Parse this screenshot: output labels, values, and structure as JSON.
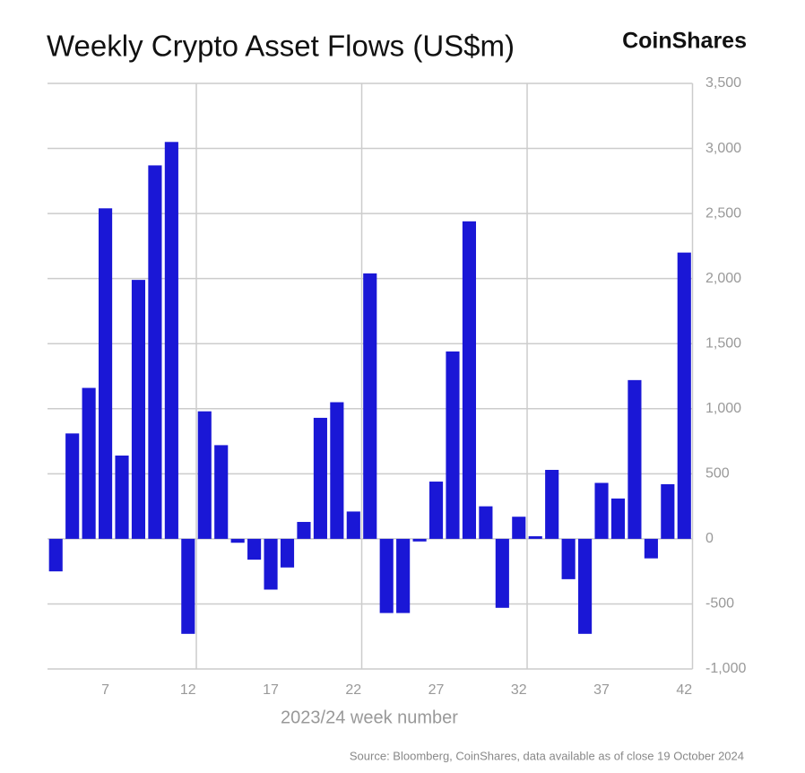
{
  "chart_data": {
    "type": "bar",
    "title": "Weekly Crypto Asset Flows (US$m)",
    "brand": "CoinShares",
    "xlabel": "2023/24 week number",
    "source": "Source: Bloomberg, CoinShares, data available as of close 19 October 2024",
    "categories": [
      null,
      null,
      null,
      "7",
      null,
      null,
      null,
      null,
      "12",
      null,
      null,
      null,
      null,
      "17",
      null,
      null,
      null,
      null,
      "22",
      null,
      null,
      null,
      null,
      "27",
      null,
      null,
      null,
      null,
      "32",
      null,
      null,
      null,
      null,
      "37",
      null,
      null,
      null,
      null,
      "42"
    ],
    "values": [
      -250,
      810,
      1160,
      2540,
      640,
      1990,
      2870,
      3050,
      -730,
      980,
      720,
      -30,
      -160,
      -390,
      -220,
      130,
      930,
      1050,
      210,
      2040,
      -570,
      -570,
      -20,
      440,
      1440,
      2440,
      250,
      -530,
      170,
      20,
      530,
      -310,
      -730,
      430,
      310,
      1220,
      -150,
      420,
      2200
    ],
    "color": "#1a17d6",
    "ylim": [
      -1000,
      3500
    ],
    "yticks": [
      {
        "value": -1000,
        "label": "-1,000"
      },
      -500,
      0,
      500,
      {
        "value": 1000,
        "label": "1,000"
      },
      {
        "value": 1500,
        "label": "1,500"
      },
      {
        "value": 2000,
        "label": "2,000"
      },
      {
        "value": 2500,
        "label": "2,500"
      },
      {
        "value": 3000,
        "label": "3,000"
      },
      {
        "value": 3500,
        "label": "3,500"
      }
    ],
    "grid": true
  }
}
